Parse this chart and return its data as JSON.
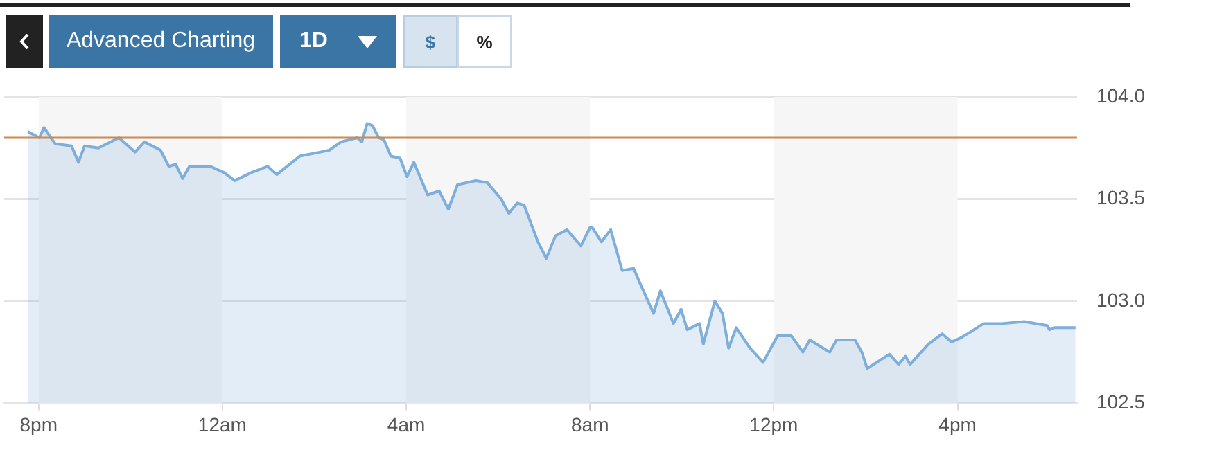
{
  "chart_data": {
    "type": "area",
    "x": [
      "--01-01T19:46",
      "--01-01T20:01",
      "--01-01T20:07",
      "--01-01T20:16",
      "--01-01T20:22",
      "--01-01T20:43",
      "--01-01T20:52",
      "--01-01T21:00",
      "--01-01T21:18",
      "--01-01T21:45",
      "--01-01T22:06",
      "--01-01T22:18",
      "--01-01T22:39",
      "--01-01T22:50",
      "--01-01T22:59",
      "--01-01T23:08",
      "--01-01T23:17",
      "--01-01T23:44",
      "--01-02T00:02",
      "--01-02T00:16",
      "--01-02T00:38",
      "--01-02T00:59",
      "--01-02T01:11",
      "--01-02T01:41",
      "--01-02T02:08",
      "--01-02T02:20",
      "--01-02T02:35",
      "--01-02T02:56",
      "--01-02T03:02",
      "--01-02T03:09",
      "--01-02T03:16",
      "--01-02T03:24",
      "--01-02T03:31",
      "--01-02T03:40",
      "--01-02T03:52",
      "--01-02T04:01",
      "--01-02T04:10",
      "--01-02T04:28",
      "--01-02T04:43",
      "--01-02T04:55",
      "--01-02T05:07",
      "--01-02T05:31",
      "--01-02T05:46",
      "--01-02T06:04",
      "--01-02T06:14",
      "--01-02T06:25",
      "--01-02T06:34",
      "--01-02T06:52",
      "--01-02T07:03",
      "--01-02T07:15",
      "--01-02T07:30",
      "--01-02T07:48",
      "--01-02T08:00",
      "--01-02T08:03",
      "--01-02T08:15",
      "--01-02T08:27",
      "--01-02T08:42",
      "--01-02T08:57",
      "--01-02T09:05",
      "--01-02T09:23",
      "--01-02T09:32",
      "--01-02T09:49",
      "--01-02T09:59",
      "--01-02T10:07",
      "--01-02T10:23",
      "--01-02T10:28",
      "--01-02T10:43",
      "--01-02T10:53",
      "--01-02T11:01",
      "--01-02T11:11",
      "--01-02T11:29",
      "--01-02T11:46",
      "--01-02T12:05",
      "--01-02T12:23",
      "--01-02T12:38",
      "--01-02T12:47",
      "--01-02T13:13",
      "--01-02T13:22",
      "--01-02T13:46",
      "--01-02T13:55",
      "--01-02T14:02",
      "--01-02T14:31",
      "--01-02T14:43",
      "--01-02T14:52",
      "--01-02T14:58",
      "--01-02T15:22",
      "--01-02T15:40",
      "--01-02T15:52",
      "--01-02T16:04",
      "--01-02T16:13",
      "--01-02T16:34",
      "--01-02T16:58",
      "--01-02T17:27",
      "--01-02T17:57",
      "--01-02T18:00",
      "--01-02T18:06",
      "--01-02T18:34"
    ],
    "series": [
      {
        "color": "#7eaedb",
        "values": [
          103.83,
          103.8,
          103.85,
          103.8,
          103.77,
          103.76,
          103.68,
          103.76,
          103.75,
          103.8,
          103.73,
          103.78,
          103.74,
          103.66,
          103.67,
          103.6,
          103.66,
          103.66,
          103.63,
          103.59,
          103.63,
          103.66,
          103.62,
          103.71,
          103.73,
          103.74,
          103.78,
          103.8,
          103.78,
          103.87,
          103.86,
          103.8,
          103.79,
          103.71,
          103.7,
          103.61,
          103.68,
          103.52,
          103.54,
          103.45,
          103.57,
          103.59,
          103.58,
          103.5,
          103.43,
          103.48,
          103.47,
          103.29,
          103.21,
          103.32,
          103.35,
          103.27,
          103.36,
          103.36,
          103.29,
          103.35,
          103.15,
          103.16,
          103.09,
          102.94,
          103.05,
          102.89,
          102.96,
          102.86,
          102.89,
          102.79,
          103.0,
          102.94,
          102.77,
          102.87,
          102.77,
          102.7,
          102.83,
          102.83,
          102.75,
          102.81,
          102.75,
          102.81,
          102.81,
          102.75,
          102.67,
          102.74,
          102.69,
          102.73,
          102.69,
          102.79,
          102.84,
          102.8,
          102.82,
          102.84,
          102.89,
          102.89,
          102.9,
          102.88,
          102.86,
          102.87,
          102.87
        ]
      }
    ],
    "xlim": [
      "--01-01T19:15",
      "--01-02T18:36"
    ],
    "xticks": [
      {
        "value": "--01-01T20:00",
        "label": "8pm"
      },
      {
        "value": "--01-02T00:00",
        "label": "12am"
      },
      {
        "value": "--01-02T04:00",
        "label": "4am"
      },
      {
        "value": "--01-02T08:00",
        "label": "8am"
      },
      {
        "value": "--01-02T12:00",
        "label": "12pm"
      },
      {
        "value": "--01-02T16:00",
        "label": "4pm"
      }
    ],
    "ylim": [
      102.5,
      104
    ],
    "yticks": [
      {
        "value": 102.5,
        "label": "102.5"
      },
      {
        "value": 103,
        "label": "103.0"
      },
      {
        "value": 103.5,
        "label": "103.5"
      },
      {
        "value": 104,
        "label": "104.0"
      }
    ],
    "grid": "y",
    "legend": false,
    "marker": "none",
    "line_style": "solid",
    "ref_lines": [
      {
        "axis": "y",
        "value": 103.8,
        "color": "#d08a4f"
      }
    ],
    "bands": [
      {
        "axis": "x",
        "from": "--01-01T20:00",
        "to": "--01-02T00:00",
        "color": "#f6f6f6"
      },
      {
        "axis": "x",
        "from": "--01-02T04:00",
        "to": "--01-02T08:00",
        "color": "#f6f6f6"
      },
      {
        "axis": "x",
        "from": "--01-02T12:00",
        "to": "--01-02T16:00",
        "color": "#f6f6f6"
      }
    ],
    "annotations": [
      "Advanced Charting",
      "1D",
      "$",
      "%"
    ]
  }
}
